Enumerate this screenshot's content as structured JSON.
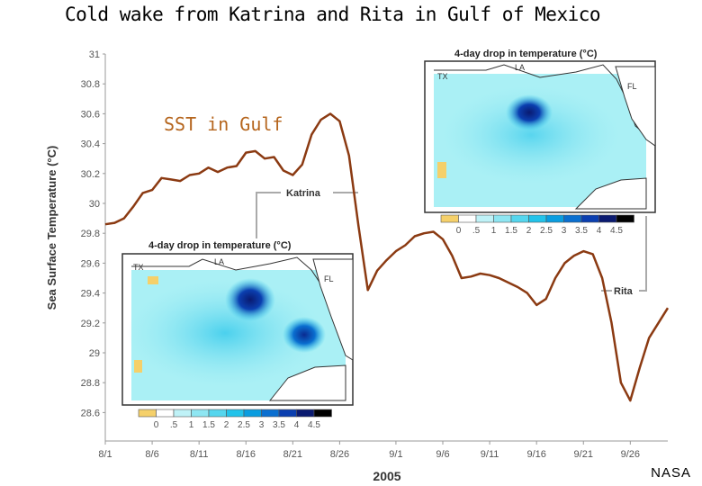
{
  "title": "Cold wake from Katrina and Rita in Gulf of Mexico",
  "sst_label": "SST in Gulf",
  "credit": "NASA",
  "colors": {
    "line": "#8b3a12",
    "sst_label": "#b5651d",
    "callout": "#aaaaaa",
    "scale": [
      "#f5d06a",
      "#ffffff",
      "#bff2f7",
      "#8ee6f2",
      "#55d6ee",
      "#22c3ea",
      "#0a9de0",
      "#0a6fd0",
      "#0b3fb0",
      "#0a1a70",
      "#000000"
    ]
  },
  "chart_data": {
    "type": "line",
    "title": "Cold wake from Katrina and Rita in Gulf of Mexico",
    "xlabel": "2005",
    "ylabel": "Sea Surface Temperature (°C)",
    "ylim": [
      28.5,
      31
    ],
    "yticks": [
      "31",
      "30.8",
      "30.6",
      "30.4",
      "30.2",
      "30",
      "29.8",
      "29.6",
      "29.4",
      "29.2",
      "29",
      "28.8",
      "28.6"
    ],
    "xticks": [
      "8/1",
      "8/6",
      "8/11",
      "8/16",
      "8/21",
      "8/26",
      "9/1",
      "9/6",
      "9/11",
      "9/16",
      "9/21",
      "9/26"
    ],
    "x": [
      0,
      1,
      2,
      3,
      4,
      5,
      6,
      7,
      8,
      9,
      10,
      11,
      12,
      13,
      14,
      15,
      16,
      17,
      18,
      19,
      20,
      21,
      22,
      23,
      24,
      25,
      26,
      27,
      28,
      29,
      30,
      31,
      32,
      33,
      34,
      35,
      36,
      37,
      38,
      39,
      40,
      41,
      42,
      43,
      44,
      45,
      46,
      47,
      48,
      49,
      50,
      51,
      52,
      53,
      54,
      55,
      56,
      57,
      58,
      59,
      60
    ],
    "series": [
      {
        "values": [
          29.86,
          29.87,
          29.9,
          29.98,
          30.07,
          30.09,
          30.17,
          30.16,
          30.15,
          30.19,
          30.2,
          30.24,
          30.21,
          30.24,
          30.25,
          30.34,
          30.35,
          30.3,
          30.31,
          30.22,
          30.19,
          30.26,
          30.46,
          30.56,
          30.6,
          30.55,
          30.32,
          29.85,
          29.42,
          29.55,
          29.62,
          29.68,
          29.72,
          29.78,
          29.8,
          29.81,
          29.76,
          29.65,
          29.5,
          29.51,
          29.53,
          29.52,
          29.5,
          29.47,
          29.44,
          29.4,
          29.32,
          29.36,
          29.5,
          29.6,
          29.65,
          29.68,
          29.66,
          29.5,
          29.2,
          28.8,
          28.68,
          28.9,
          29.1,
          29.2,
          29.3
        ]
      }
    ],
    "annotations": [
      "Katrina",
      "Rita"
    ],
    "grid": false,
    "legend": "none"
  },
  "insets": {
    "katrina": {
      "title": "4-day drop in temperature (°C)",
      "labels": [
        "TX",
        "LA",
        "FL"
      ],
      "scale": [
        "0",
        ".5",
        "1",
        "1.5",
        "2",
        "2.5",
        "3",
        "3.5",
        "4",
        "4.5"
      ]
    },
    "rita": {
      "title": "4-day drop in temperature (°C)",
      "labels": [
        "TX",
        "LA",
        "FL"
      ],
      "scale": [
        "0",
        ".5",
        "1",
        "1.5",
        "2",
        "2.5",
        "3",
        "3.5",
        "4",
        "4.5"
      ]
    }
  }
}
